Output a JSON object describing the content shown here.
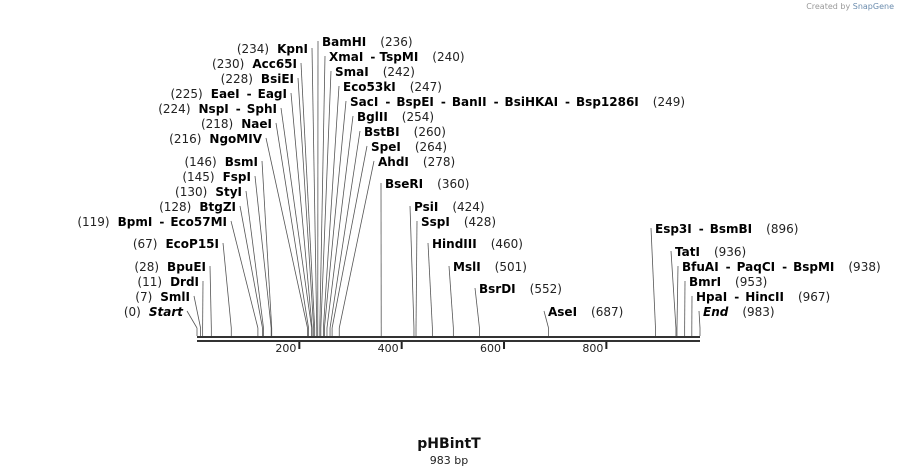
{
  "credit": {
    "prefix": "Created by",
    "brand": "SnapGene"
  },
  "map": {
    "name": "pHBintT",
    "length_label": "983 bp",
    "length": 983,
    "ticks": [
      200,
      400,
      600,
      800
    ],
    "line_color": "#333333"
  },
  "sites": [
    {
      "parts": [
        "BamHI"
      ],
      "pos": "236"
    },
    {
      "parts": [
        "XmaI",
        "TspMI"
      ],
      "pos": "240"
    },
    {
      "parts": [
        "SmaI"
      ],
      "pos": "242"
    },
    {
      "parts": [
        "Eco53kI"
      ],
      "pos": "247"
    },
    {
      "parts": [
        "SacI",
        "BspEI",
        "BanII",
        "BsiHKAI",
        "Bsp1286I"
      ],
      "pos": "249"
    },
    {
      "parts": [
        "BglII"
      ],
      "pos": "254"
    },
    {
      "parts": [
        "BstBI"
      ],
      "pos": "260"
    },
    {
      "parts": [
        "SpeI"
      ],
      "pos": "264"
    },
    {
      "parts": [
        "AhdI"
      ],
      "pos": "278"
    },
    {
      "parts": [
        "BseRI"
      ],
      "pos": "360"
    },
    {
      "parts": [
        "PsiI"
      ],
      "pos": "424"
    },
    {
      "parts": [
        "SspI"
      ],
      "pos": "428"
    },
    {
      "parts": [
        "HindIII"
      ],
      "pos": "460"
    },
    {
      "parts": [
        "MslI"
      ],
      "pos": "501"
    },
    {
      "parts": [
        "BsrDI"
      ],
      "pos": "552"
    },
    {
      "parts": [
        "AseI"
      ],
      "pos": "687"
    },
    {
      "parts": [
        "KpnI"
      ],
      "pos": "234"
    },
    {
      "parts": [
        "Acc65I"
      ],
      "pos": "230"
    },
    {
      "parts": [
        "BsiEI"
      ],
      "pos": "228"
    },
    {
      "parts": [
        "EaeI",
        "EagI"
      ],
      "pos": "225"
    },
    {
      "parts": [
        "NspI",
        "SphI"
      ],
      "pos": "224"
    },
    {
      "parts": [
        "NaeI"
      ],
      "pos": "218"
    },
    {
      "parts": [
        "NgoMIV"
      ],
      "pos": "216"
    },
    {
      "parts": [
        "BsmI"
      ],
      "pos": "146"
    },
    {
      "parts": [
        "FspI"
      ],
      "pos": "145"
    },
    {
      "parts": [
        "StyI"
      ],
      "pos": "130"
    },
    {
      "parts": [
        "BtgZI"
      ],
      "pos": "128"
    },
    {
      "parts": [
        "BpmI",
        "Eco57MI"
      ],
      "pos": "119"
    },
    {
      "parts": [
        "EcoP15I"
      ],
      "pos": "67"
    },
    {
      "parts": [
        "BpuEI"
      ],
      "pos": "28"
    },
    {
      "parts": [
        "DrdI"
      ],
      "pos": "11"
    },
    {
      "parts": [
        "SmlI"
      ],
      "pos": "7"
    },
    {
      "parts": [
        "Start"
      ],
      "pos": "0",
      "italic": true
    },
    {
      "parts": [
        "Esp3I",
        "BsmBI"
      ],
      "pos": "896"
    },
    {
      "parts": [
        "TatI"
      ],
      "pos": "936"
    },
    {
      "parts": [
        "BfuAI",
        "PaqCI",
        "BspMI"
      ],
      "pos": "938"
    },
    {
      "parts": [
        "BmrI"
      ],
      "pos": "953"
    },
    {
      "parts": [
        "HpaI",
        "HincII"
      ],
      "pos": "967"
    },
    {
      "parts": [
        "End"
      ],
      "pos": "983",
      "italic": true
    }
  ]
}
